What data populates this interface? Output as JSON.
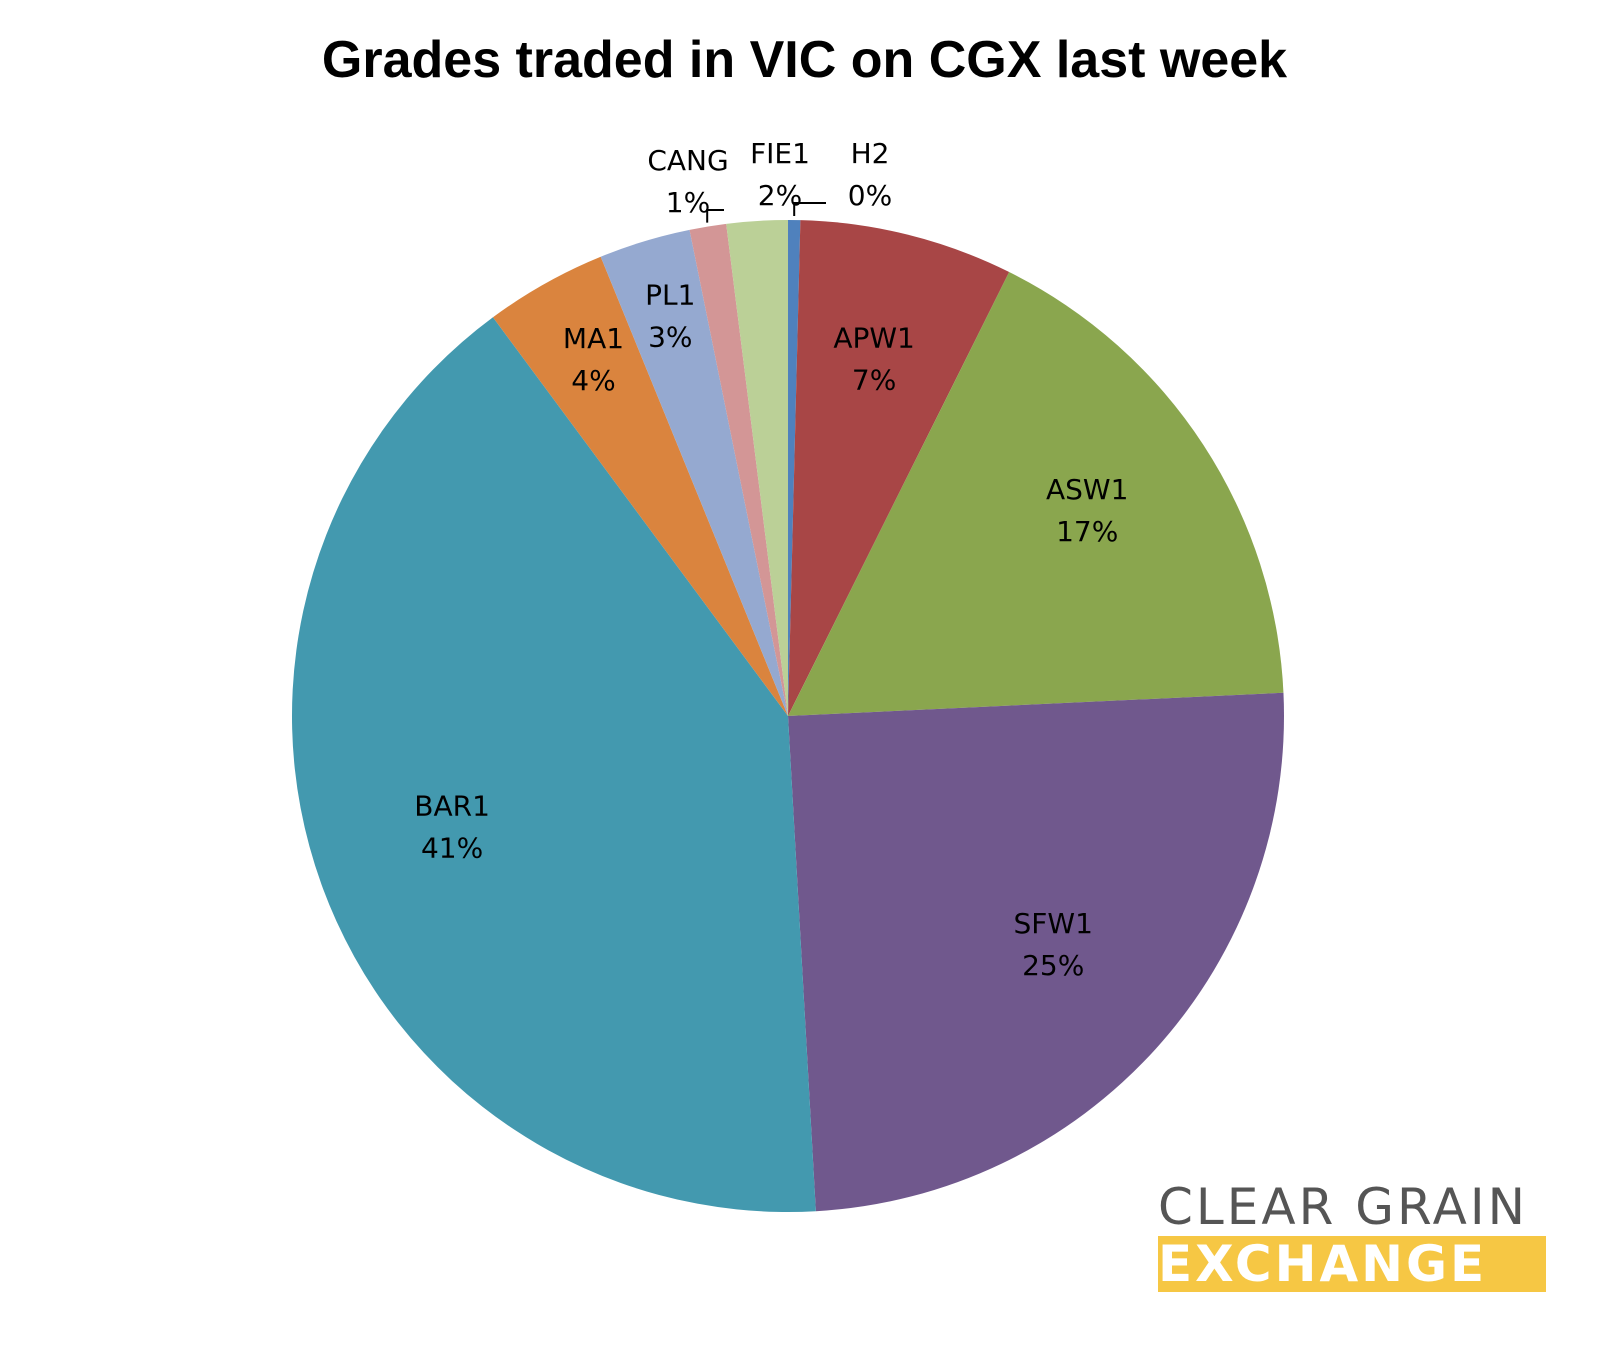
{
  "chart_data": {
    "type": "pie",
    "title": "Grades traded in VIC on CGX last week",
    "slices": [
      {
        "name": "H2",
        "value": 0.4,
        "label": "0%",
        "color": "#4f81bd"
      },
      {
        "name": "APW1",
        "value": 7,
        "label": "7%",
        "color": "#a84646"
      },
      {
        "name": "ASW1",
        "value": 17,
        "label": "17%",
        "color": "#8aa64e"
      },
      {
        "name": "SFW1",
        "value": 25,
        "label": "25%",
        "color": "#70588d"
      },
      {
        "name": "BAR1",
        "value": 41,
        "label": "41%",
        "color": "#4399af"
      },
      {
        "name": "MA1",
        "value": 4,
        "label": "4%",
        "color": "#da843e"
      },
      {
        "name": "PL1",
        "value": 3,
        "label": "3%",
        "color": "#95a9d0"
      },
      {
        "name": "CANG",
        "value": 1.2,
        "label": "1%",
        "color": "#d39696"
      },
      {
        "name": "FIE1",
        "value": 2,
        "label": "2%",
        "color": "#bbd097"
      }
    ],
    "start_angle": "12 o'clock",
    "direction": "clockwise",
    "legend": "none"
  },
  "logo": {
    "line1": "CLEAR GRAIN",
    "line2": "EXCHANGE",
    "line1_color": "#555555",
    "line2_background": "#f6c744"
  }
}
